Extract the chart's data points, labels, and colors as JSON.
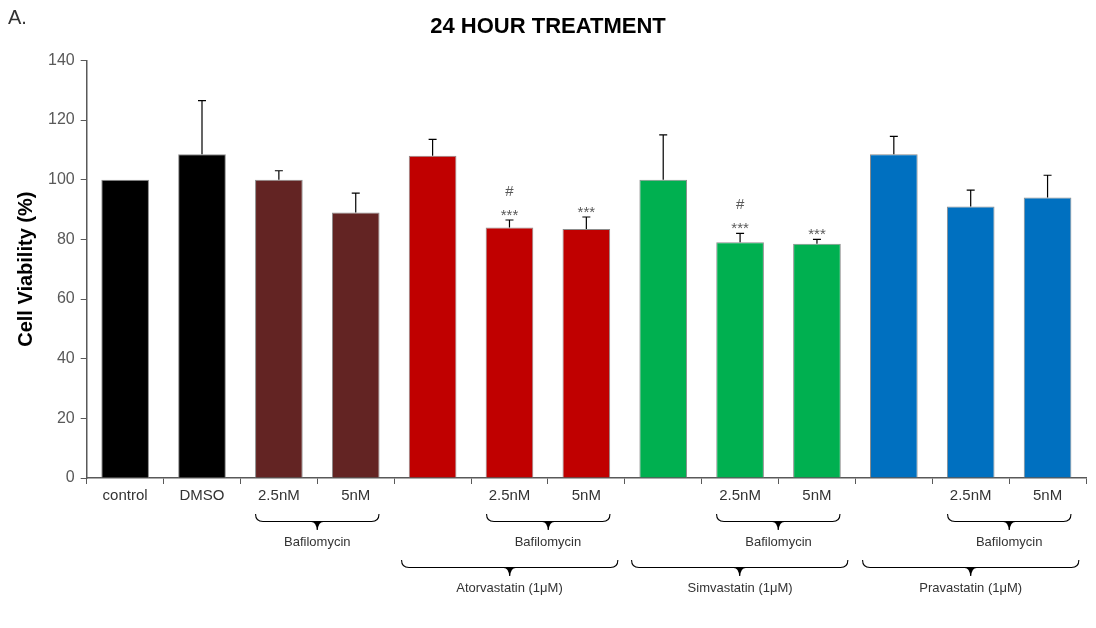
{
  "chart_data": {
    "type": "bar",
    "title": "24 HOUR TREATMENT",
    "ylabel": "Cell Viability (%)",
    "categories": [
      "control",
      "DMSO",
      "2.5nM",
      "5nM",
      null,
      "2.5nM",
      "5nM",
      null,
      "2.5nM",
      "5nM",
      null,
      "2.5nM",
      "5nM"
    ],
    "values": [
      100,
      108.5,
      100,
      89,
      108,
      84,
      83.5,
      100,
      79,
      78.5,
      108.5,
      91,
      94
    ],
    "errors": [
      null,
      [
        108.5,
        126.5
      ],
      [
        100,
        103
      ],
      [
        89,
        95.5
      ],
      [
        108,
        113.5
      ],
      [
        84,
        86.5
      ],
      [
        83.5,
        87.5
      ],
      [
        100,
        115
      ],
      [
        79,
        82
      ],
      [
        78.5,
        80
      ],
      [
        108.5,
        114.5
      ],
      [
        91,
        96.5
      ],
      [
        94,
        101.5
      ]
    ],
    "colors": [
      "#000000",
      "#000000",
      "#632423",
      "#632423",
      "#c00000",
      "#c00000",
      "#c00000",
      "#00b050",
      "#00b050",
      "#00b050",
      "#0070c0",
      "#0070c0",
      "#0070c0"
    ],
    "ylim": [
      0,
      140
    ],
    "yticks": [
      0,
      20,
      40,
      60,
      80,
      100,
      120,
      140
    ],
    "grid": false,
    "annotations": [
      "#",
      "***",
      "***",
      "#",
      "***",
      "***",
      "Bafilomycin",
      "Bafilomycin",
      "Bafilomycin",
      "Bafilomycin",
      "Atorvastatin (1μM)",
      "Simvastatin (1μM)",
      "Pravastatin (1μM)",
      "A."
    ]
  }
}
